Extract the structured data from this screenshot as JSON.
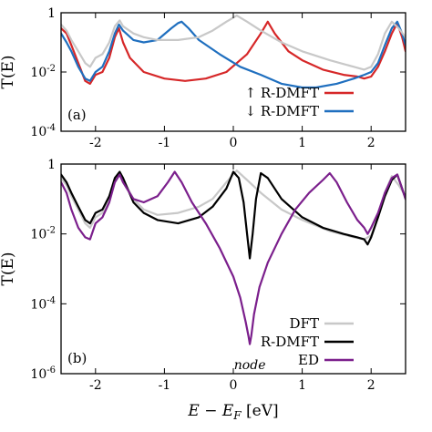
{
  "chart_data": [
    {
      "panel": "(a)",
      "type": "line",
      "ylabel": "T(E)",
      "xlim": [
        -2.5,
        2.5
      ],
      "ylim": [
        0.0001,
        1
      ],
      "yscale": "log",
      "xticks": [
        -2,
        -1,
        0,
        1,
        2
      ],
      "xtick_labels": [
        "-2",
        "-1",
        "0",
        "1",
        "2"
      ],
      "yticks": [
        1,
        0.01,
        0.0001
      ],
      "ytick_labels": [
        {
          "base": "1",
          "exp": ""
        },
        {
          "base": "10",
          "exp": "-2"
        },
        {
          "base": "10",
          "exp": "-4"
        }
      ],
      "legend_placement": "bottom-right",
      "series": [
        {
          "name": "↑ R-DMFT",
          "color": "#d62728",
          "x": [
            -2.5,
            -2.42,
            -2.35,
            -2.25,
            -2.15,
            -2.08,
            -2.0,
            -1.9,
            -1.8,
            -1.72,
            -1.66,
            -1.6,
            -1.5,
            -1.3,
            -1.0,
            -0.7,
            -0.4,
            -0.1,
            0.2,
            0.4,
            0.5,
            0.6,
            0.8,
            1.0,
            1.3,
            1.6,
            1.8,
            1.9,
            2.0,
            2.1,
            2.2,
            2.3,
            2.38,
            2.45,
            2.5
          ],
          "y": [
            0.3,
            0.2,
            0.08,
            0.02,
            0.005,
            0.004,
            0.008,
            0.01,
            0.03,
            0.15,
            0.3,
            0.1,
            0.03,
            0.01,
            0.006,
            0.005,
            0.006,
            0.01,
            0.04,
            0.2,
            0.5,
            0.2,
            0.05,
            0.025,
            0.012,
            0.008,
            0.007,
            0.006,
            0.007,
            0.015,
            0.05,
            0.2,
            0.45,
            0.15,
            0.05
          ]
        },
        {
          "name": "↓ R-DMFT",
          "color": "#1f6fbf",
          "x": [
            -2.5,
            -2.42,
            -2.35,
            -2.25,
            -2.15,
            -2.08,
            -2.0,
            -1.9,
            -1.8,
            -1.72,
            -1.66,
            -1.6,
            -1.45,
            -1.3,
            -1.1,
            -0.9,
            -0.8,
            -0.75,
            -0.65,
            -0.5,
            -0.2,
            0.1,
            0.4,
            0.7,
            1.0,
            1.2,
            1.5,
            1.75,
            1.9,
            2.0,
            2.1,
            2.2,
            2.3,
            2.38,
            2.45,
            2.5
          ],
          "y": [
            0.2,
            0.1,
            0.05,
            0.015,
            0.006,
            0.005,
            0.01,
            0.015,
            0.05,
            0.2,
            0.4,
            0.25,
            0.12,
            0.1,
            0.12,
            0.3,
            0.45,
            0.5,
            0.3,
            0.12,
            0.04,
            0.015,
            0.008,
            0.004,
            0.003,
            0.003,
            0.004,
            0.006,
            0.008,
            0.01,
            0.02,
            0.08,
            0.3,
            0.5,
            0.2,
            0.08
          ]
        },
        {
          "name": "",
          "color": "#c8c8c8",
          "x": [
            -2.5,
            -2.42,
            -2.35,
            -2.25,
            -2.15,
            -2.08,
            -2.0,
            -1.9,
            -1.8,
            -1.72,
            -1.65,
            -1.6,
            -1.45,
            -1.3,
            -1.1,
            -0.8,
            -0.5,
            -0.3,
            -0.1,
            0.05,
            0.2,
            0.4,
            0.7,
            1.0,
            1.4,
            1.75,
            1.9,
            2.0,
            2.1,
            2.2,
            2.3,
            2.4,
            2.5
          ],
          "y": [
            0.4,
            0.25,
            0.12,
            0.05,
            0.02,
            0.015,
            0.03,
            0.04,
            0.1,
            0.35,
            0.55,
            0.35,
            0.2,
            0.15,
            0.12,
            0.12,
            0.15,
            0.25,
            0.5,
            0.8,
            0.5,
            0.25,
            0.1,
            0.05,
            0.025,
            0.015,
            0.012,
            0.015,
            0.04,
            0.2,
            0.5,
            0.3,
            0.15
          ]
        }
      ]
    },
    {
      "panel": "(b)",
      "type": "line",
      "ylabel": "T(E)",
      "xlabel": "E − E_F [eV]",
      "xlim": [
        -2.5,
        2.5
      ],
      "ylim": [
        1e-06,
        1
      ],
      "yscale": "log",
      "xticks": [
        -2,
        -1,
        0,
        1,
        2
      ],
      "xtick_labels": [
        "-2",
        "-1",
        "0",
        "1",
        "2"
      ],
      "yticks": [
        1,
        0.01,
        0.0001,
        1e-06
      ],
      "ytick_labels": [
        {
          "base": "1",
          "exp": ""
        },
        {
          "base": "10",
          "exp": "-2"
        },
        {
          "base": "10",
          "exp": "-4"
        },
        {
          "base": "10",
          "exp": "-6"
        }
      ],
      "legend_placement": "bottom-right",
      "annotation": {
        "text": "node",
        "x": 0.24,
        "y": 4e-06
      },
      "series": [
        {
          "name": "DFT",
          "color": "#c8c8c8",
          "x": [
            -2.5,
            -2.42,
            -2.35,
            -2.25,
            -2.15,
            -2.08,
            -2.0,
            -1.9,
            -1.8,
            -1.72,
            -1.65,
            -1.6,
            -1.45,
            -1.3,
            -1.1,
            -0.8,
            -0.5,
            -0.3,
            -0.1,
            0.05,
            0.2,
            0.4,
            0.7,
            1.0,
            1.4,
            1.75,
            1.9,
            2.0,
            2.1,
            2.2,
            2.3,
            2.4,
            2.5
          ],
          "y": [
            0.4,
            0.25,
            0.12,
            0.05,
            0.02,
            0.015,
            0.03,
            0.04,
            0.1,
            0.35,
            0.55,
            0.35,
            0.1,
            0.05,
            0.035,
            0.04,
            0.06,
            0.1,
            0.3,
            0.65,
            0.35,
            0.15,
            0.05,
            0.025,
            0.012,
            0.008,
            0.007,
            0.009,
            0.03,
            0.15,
            0.45,
            0.25,
            0.12
          ]
        },
        {
          "name": "R-DMFT",
          "color": "#000000",
          "x": [
            -2.5,
            -2.42,
            -2.35,
            -2.25,
            -2.15,
            -2.08,
            -2.0,
            -1.9,
            -1.8,
            -1.72,
            -1.65,
            -1.6,
            -1.45,
            -1.3,
            -1.1,
            -0.8,
            -0.5,
            -0.3,
            -0.1,
            0.0,
            0.08,
            0.15,
            0.2,
            0.24,
            0.28,
            0.33,
            0.4,
            0.5,
            0.7,
            1.0,
            1.3,
            1.6,
            1.8,
            1.9,
            1.95,
            2.0,
            2.1,
            2.2,
            2.3,
            2.38,
            2.45,
            2.5
          ],
          "y": [
            0.5,
            0.3,
            0.15,
            0.06,
            0.025,
            0.02,
            0.04,
            0.05,
            0.12,
            0.4,
            0.6,
            0.4,
            0.08,
            0.04,
            0.025,
            0.02,
            0.03,
            0.06,
            0.2,
            0.6,
            0.4,
            0.08,
            0.01,
            0.002,
            0.01,
            0.1,
            0.55,
            0.4,
            0.1,
            0.03,
            0.015,
            0.01,
            0.008,
            0.007,
            0.005,
            0.008,
            0.03,
            0.12,
            0.35,
            0.5,
            0.2,
            0.1
          ]
        },
        {
          "name": "ED",
          "color": "#7b1f8c",
          "x": [
            -2.5,
            -2.42,
            -2.35,
            -2.25,
            -2.15,
            -2.08,
            -2.0,
            -1.9,
            -1.8,
            -1.72,
            -1.65,
            -1.6,
            -1.45,
            -1.3,
            -1.1,
            -0.95,
            -0.85,
            -0.75,
            -0.6,
            -0.4,
            -0.2,
            0.0,
            0.1,
            0.18,
            0.22,
            0.24,
            0.26,
            0.3,
            0.38,
            0.5,
            0.7,
            0.9,
            1.1,
            1.3,
            1.4,
            1.5,
            1.65,
            1.8,
            1.9,
            1.95,
            2.0,
            2.1,
            2.2,
            2.3,
            2.38,
            2.45,
            2.5
          ],
          "y": [
            0.3,
            0.15,
            0.05,
            0.015,
            0.008,
            0.007,
            0.02,
            0.03,
            0.08,
            0.3,
            0.5,
            0.3,
            0.1,
            0.08,
            0.12,
            0.3,
            0.6,
            0.3,
            0.08,
            0.02,
            0.004,
            0.0006,
            0.00015,
            3e-05,
            1.2e-05,
            7e-06,
            1.2e-05,
            5e-05,
            0.0003,
            0.0015,
            0.01,
            0.05,
            0.15,
            0.35,
            0.55,
            0.3,
            0.08,
            0.025,
            0.015,
            0.01,
            0.015,
            0.04,
            0.15,
            0.4,
            0.5,
            0.2,
            0.1
          ]
        }
      ]
    }
  ]
}
